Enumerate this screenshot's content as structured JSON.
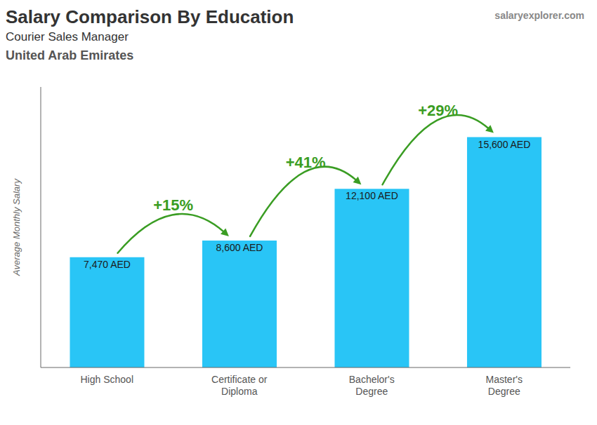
{
  "chart_data": {
    "type": "bar",
    "title": "Salary Comparison By Education",
    "subtitle": [
      "Courier Sales Manager",
      "United Arab Emirates"
    ],
    "watermark": "salaryexplorer.com",
    "ylabel": "Average Monthly Salary",
    "categories": [
      "High School",
      "Certificate or\nDiploma",
      "Bachelor's\nDegree",
      "Master's\nDegree"
    ],
    "values": [
      7470,
      8600,
      12100,
      15600
    ],
    "value_labels": [
      "7,470 AED",
      "8,600 AED",
      "12,100 AED",
      "15,600 AED"
    ],
    "data_labels": true,
    "annotations": [
      "+15%",
      "+41%",
      "+29%"
    ],
    "color": "#29c5f6",
    "ylim": [
      0,
      19000
    ],
    "grid": false,
    "tick_labels": "x"
  }
}
